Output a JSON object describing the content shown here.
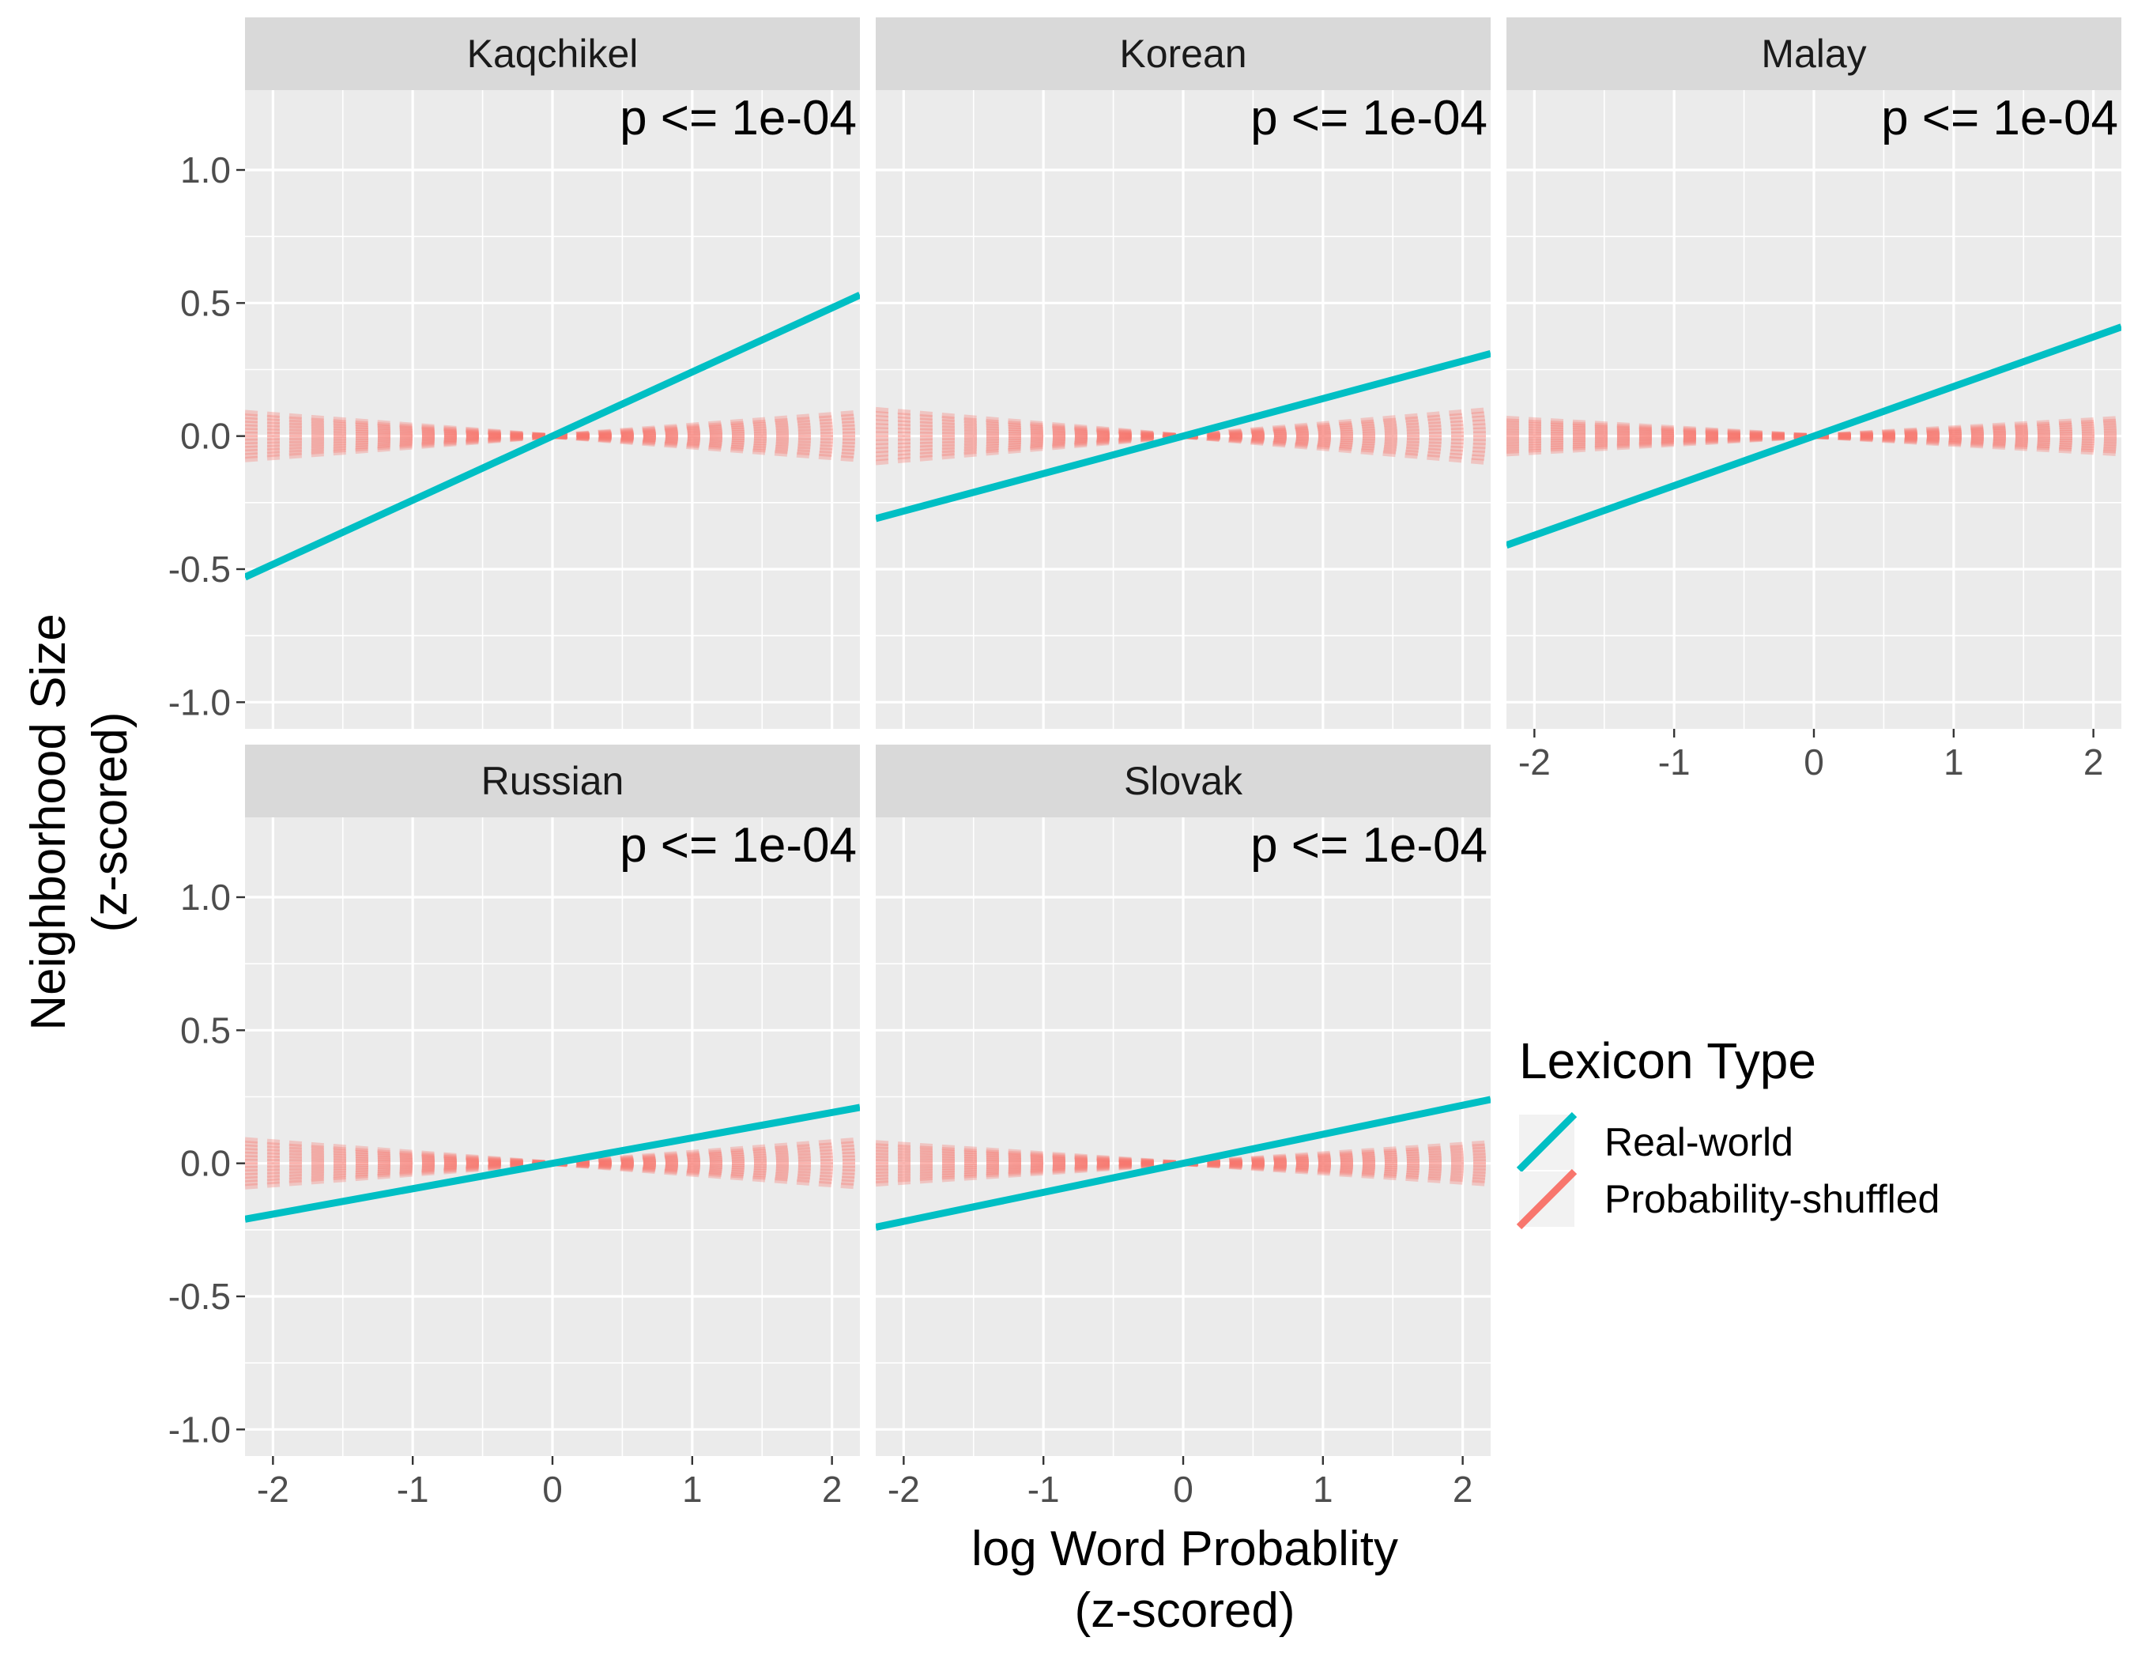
{
  "chart_data": {
    "type": "line",
    "xlabel": [
      "log Word Probablity",
      "(z-scored)"
    ],
    "ylabel": [
      "Neighborhood Size",
      "(z-scored)"
    ],
    "xlim": [
      -2.2,
      2.2
    ],
    "ylim": [
      -1.1,
      1.3
    ],
    "x_ticks": [
      -2,
      -1,
      0,
      1,
      2
    ],
    "x_tick_labels": [
      "-2",
      "-1",
      "0",
      "1",
      "2"
    ],
    "y_ticks": [
      1.0,
      0.5,
      0.0,
      -0.5,
      -1.0
    ],
    "y_tick_labels": [
      "1.0",
      "0.5",
      "0.0",
      "-0.5",
      "-1.0"
    ],
    "grid": true,
    "legend": {
      "title": "Lexicon Type",
      "placement": "right",
      "items": [
        {
          "name": "Real-world",
          "color": "#00BFC4"
        },
        {
          "name": "Probability-shuffled",
          "color": "#F8766D"
        }
      ]
    },
    "panels": [
      {
        "name": "Kaqchikel",
        "annotation": "p <= 1e-04",
        "real_world": {
          "x": [
            -2.2,
            2.2
          ],
          "y": [
            -0.53,
            0.53
          ]
        },
        "shuffled_spread": 0.04,
        "x_axis_shown": false,
        "y_axis_shown": true
      },
      {
        "name": "Korean",
        "annotation": "p <= 1e-04",
        "real_world": {
          "x": [
            -2.2,
            2.2
          ],
          "y": [
            -0.31,
            0.31
          ]
        },
        "shuffled_spread": 0.045,
        "x_axis_shown": false,
        "y_axis_shown": false
      },
      {
        "name": "Malay",
        "annotation": "p <= 1e-04",
        "real_world": {
          "x": [
            -2.2,
            2.2
          ],
          "y": [
            -0.41,
            0.41
          ]
        },
        "shuffled_spread": 0.03,
        "x_axis_shown": true,
        "y_axis_shown": false
      },
      {
        "name": "Russian",
        "annotation": "p <= 1e-04",
        "real_world": {
          "x": [
            -2.2,
            2.2
          ],
          "y": [
            -0.21,
            0.21
          ]
        },
        "shuffled_spread": 0.04,
        "x_axis_shown": true,
        "y_axis_shown": true
      },
      {
        "name": "Slovak",
        "annotation": "p <= 1e-04",
        "real_world": {
          "x": [
            -2.2,
            2.2
          ],
          "y": [
            -0.24,
            0.24
          ]
        },
        "shuffled_spread": 0.035,
        "x_axis_shown": true,
        "y_axis_shown": false
      }
    ]
  }
}
